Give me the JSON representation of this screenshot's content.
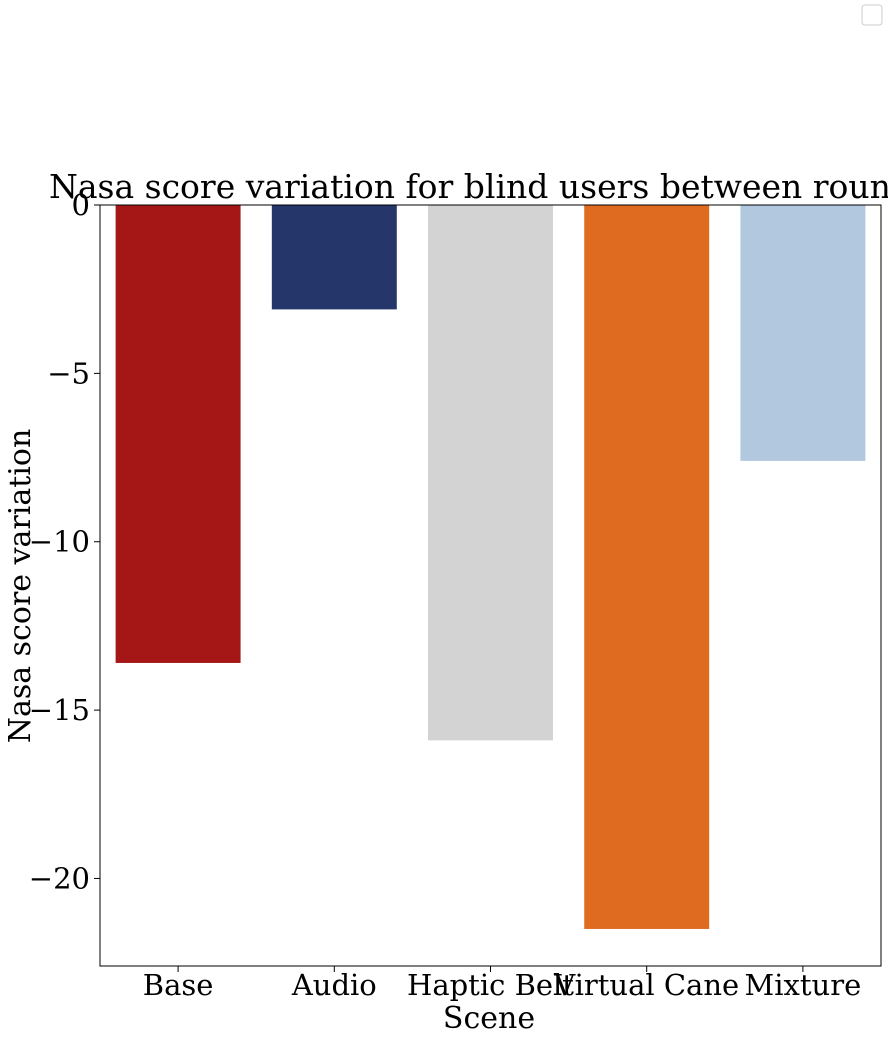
{
  "chart_data": {
    "type": "bar",
    "title": "Nasa score variation for blind users between rounds",
    "xlabel": "Scene",
    "ylabel": "Nasa score variation",
    "categories": [
      "Base",
      "Audio",
      "Haptic Belt",
      "Virtual Cane",
      "Mixture"
    ],
    "values": [
      -13.6,
      -3.1,
      -15.9,
      -21.5,
      -7.6
    ],
    "colors": [
      "#a51717",
      "#25366a",
      "#d3d3d3",
      "#df6b21",
      "#b1c8df"
    ],
    "ylim": [
      -22.6,
      0
    ],
    "yticks": [
      0,
      -5,
      -10,
      -15,
      -20
    ],
    "ytick_labels": [
      "0",
      "−5",
      "−10",
      "−15",
      "−20"
    ],
    "grid": false,
    "legend": "top-right, empty"
  }
}
